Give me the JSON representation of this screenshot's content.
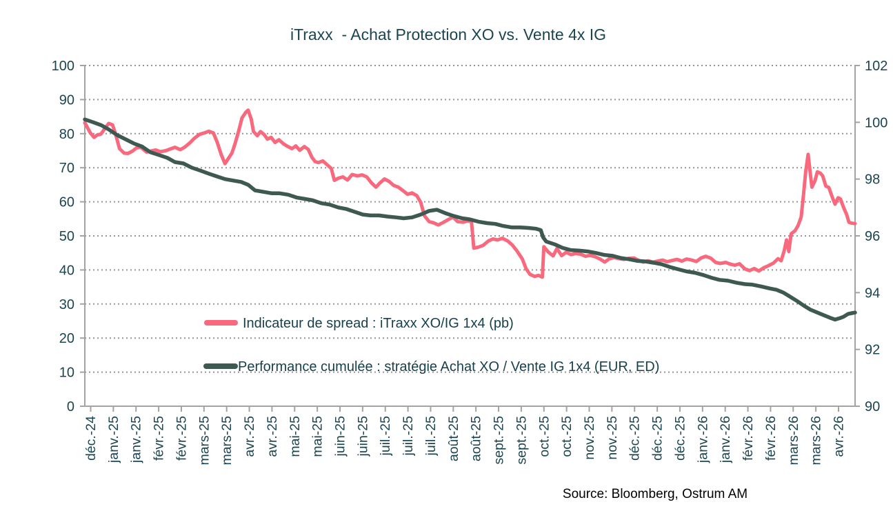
{
  "title": "iTraxx  - Achat Protection XO vs. Vente 4x IG",
  "source": "Source: Bloomberg, Ostrum AM",
  "colors": {
    "spread_line": "#f8697e",
    "performance_line": "#3e5952",
    "text": "#1a4550",
    "axis": "#a3a3a3",
    "grid": "#949494"
  },
  "legend": [
    {
      "label": "Indicateur de spread : iTraxx XO/IG 1x4 (pb)",
      "color": "#f8697e"
    },
    {
      "label": "Performance cumulée : stratégie Achat XO / Vente IG 1x4 (EUR, ED)",
      "color": "#3e5952"
    }
  ],
  "chart_data": {
    "type": "line",
    "title": "iTraxx - Achat Protection XO vs. Vente 4x IG",
    "grid": "horizontal dotted",
    "legend_position": "inside-left, mid-lower plot",
    "x_axis": {
      "note": "biweekly ticks, déc. 2024 → avr. 2026; series x stored as fraction 0-1 of time axis",
      "tick_labels": [
        "déc.-24",
        "janv.-25",
        "janv.-25",
        "févr.-25",
        "févr.-25",
        "mars-25",
        "mars-25",
        "avr.-25",
        "avr.-25",
        "mai-25",
        "mai-25",
        "juin-25",
        "juin-25",
        "juil.-25",
        "juil.-25",
        "juil.-25",
        "août-25",
        "août-25",
        "sept.-25",
        "sept.-25",
        "oct.-25",
        "oct.-25",
        "nov.-25",
        "nov.-25",
        "déc.-25",
        "déc.-25",
        "déc.-25",
        "janv.-26",
        "janv.-26",
        "févr.-26",
        "févr.-26",
        "mars-26",
        "mars-26",
        "avr.-26"
      ]
    },
    "left_y_axis": {
      "min": 0,
      "max": 100,
      "ticks": [
        0,
        10,
        20,
        30,
        40,
        50,
        60,
        70,
        80,
        90,
        100
      ],
      "series": "Indicateur de spread (pb)"
    },
    "right_y_axis": {
      "min": 90,
      "max": 102,
      "ticks": [
        90,
        92,
        94,
        96,
        98,
        100,
        102
      ],
      "series": "Performance cumulée (EUR, ED)"
    },
    "series": [
      {
        "name": "Indicateur de spread : iTraxx XO/IG 1x4 (pb)",
        "axis": "left",
        "color": "#f8697e",
        "points": [
          [
            0.0,
            83.2
          ],
          [
            0.007,
            80.3
          ],
          [
            0.012,
            78.9
          ],
          [
            0.016,
            79.6
          ],
          [
            0.021,
            79.9
          ],
          [
            0.026,
            81.5
          ],
          [
            0.031,
            83.0
          ],
          [
            0.036,
            82.6
          ],
          [
            0.04,
            79.8
          ],
          [
            0.045,
            75.6
          ],
          [
            0.051,
            74.3
          ],
          [
            0.056,
            74.2
          ],
          [
            0.062,
            74.9
          ],
          [
            0.067,
            75.8
          ],
          [
            0.073,
            76.0
          ],
          [
            0.08,
            74.6
          ],
          [
            0.086,
            74.9
          ],
          [
            0.092,
            75.2
          ],
          [
            0.098,
            74.7
          ],
          [
            0.105,
            75.0
          ],
          [
            0.111,
            75.5
          ],
          [
            0.117,
            76.0
          ],
          [
            0.124,
            75.3
          ],
          [
            0.13,
            76.1
          ],
          [
            0.136,
            77.2
          ],
          [
            0.142,
            78.6
          ],
          [
            0.149,
            79.8
          ],
          [
            0.155,
            80.2
          ],
          [
            0.161,
            80.7
          ],
          [
            0.167,
            80.2
          ],
          [
            0.172,
            77.4
          ],
          [
            0.177,
            73.9
          ],
          [
            0.182,
            71.2
          ],
          [
            0.186,
            72.6
          ],
          [
            0.191,
            74.3
          ],
          [
            0.195,
            77.0
          ],
          [
            0.2,
            81.0
          ],
          [
            0.204,
            84.6
          ],
          [
            0.209,
            86.3
          ],
          [
            0.212,
            86.9
          ],
          [
            0.216,
            84.3
          ],
          [
            0.219,
            80.6
          ],
          [
            0.224,
            79.4
          ],
          [
            0.228,
            80.6
          ],
          [
            0.233,
            79.7
          ],
          [
            0.237,
            78.4
          ],
          [
            0.242,
            78.9
          ],
          [
            0.247,
            77.4
          ],
          [
            0.252,
            78.2
          ],
          [
            0.258,
            77.0
          ],
          [
            0.263,
            76.3
          ],
          [
            0.269,
            75.6
          ],
          [
            0.274,
            76.4
          ],
          [
            0.279,
            75.1
          ],
          [
            0.285,
            76.2
          ],
          [
            0.29,
            75.4
          ],
          [
            0.295,
            73.0
          ],
          [
            0.299,
            71.8
          ],
          [
            0.303,
            71.5
          ],
          [
            0.309,
            72.0
          ],
          [
            0.314,
            71.0
          ],
          [
            0.32,
            69.8
          ],
          [
            0.324,
            66.3
          ],
          [
            0.329,
            66.9
          ],
          [
            0.335,
            67.3
          ],
          [
            0.341,
            66.4
          ],
          [
            0.347,
            68.0
          ],
          [
            0.354,
            67.6
          ],
          [
            0.36,
            67.9
          ],
          [
            0.366,
            67.3
          ],
          [
            0.372,
            65.6
          ],
          [
            0.378,
            64.3
          ],
          [
            0.383,
            65.5
          ],
          [
            0.389,
            66.7
          ],
          [
            0.395,
            66.0
          ],
          [
            0.401,
            64.8
          ],
          [
            0.407,
            64.3
          ],
          [
            0.413,
            63.3
          ],
          [
            0.419,
            62.2
          ],
          [
            0.425,
            62.6
          ],
          [
            0.431,
            61.8
          ],
          [
            0.436,
            59.9
          ],
          [
            0.441,
            55.9
          ],
          [
            0.447,
            54.2
          ],
          [
            0.453,
            53.8
          ],
          [
            0.459,
            53.2
          ],
          [
            0.466,
            54.0
          ],
          [
            0.472,
            54.8
          ],
          [
            0.478,
            55.5
          ],
          [
            0.484,
            54.2
          ],
          [
            0.491,
            54.0
          ],
          [
            0.497,
            54.4
          ],
          [
            0.502,
            54.2
          ],
          [
            0.505,
            46.4
          ],
          [
            0.511,
            46.7
          ],
          [
            0.517,
            47.2
          ],
          [
            0.524,
            48.5
          ],
          [
            0.53,
            49.1
          ],
          [
            0.536,
            48.8
          ],
          [
            0.542,
            49.3
          ],
          [
            0.549,
            48.5
          ],
          [
            0.555,
            47.3
          ],
          [
            0.561,
            45.6
          ],
          [
            0.568,
            43.2
          ],
          [
            0.573,
            40.3
          ],
          [
            0.578,
            38.7
          ],
          [
            0.584,
            38.1
          ],
          [
            0.589,
            38.4
          ],
          [
            0.594,
            37.9
          ],
          [
            0.596,
            46.8
          ],
          [
            0.602,
            45.2
          ],
          [
            0.608,
            44.1
          ],
          [
            0.613,
            46.3
          ],
          [
            0.619,
            44.2
          ],
          [
            0.625,
            45.2
          ],
          [
            0.631,
            44.5
          ],
          [
            0.637,
            44.8
          ],
          [
            0.644,
            44.6
          ],
          [
            0.65,
            44.0
          ],
          [
            0.656,
            44.3
          ],
          [
            0.662,
            43.9
          ],
          [
            0.669,
            43.2
          ],
          [
            0.675,
            42.3
          ],
          [
            0.681,
            43.3
          ],
          [
            0.687,
            43.6
          ],
          [
            0.694,
            43.3
          ],
          [
            0.7,
            43.1
          ],
          [
            0.706,
            43.4
          ],
          [
            0.713,
            43.5
          ],
          [
            0.719,
            42.8
          ],
          [
            0.725,
            42.3
          ],
          [
            0.731,
            42.7
          ],
          [
            0.738,
            42.3
          ],
          [
            0.744,
            42.6
          ],
          [
            0.75,
            42.9
          ],
          [
            0.756,
            42.4
          ],
          [
            0.763,
            42.8
          ],
          [
            0.769,
            43.1
          ],
          [
            0.775,
            42.6
          ],
          [
            0.781,
            43.2
          ],
          [
            0.788,
            42.9
          ],
          [
            0.794,
            42.5
          ],
          [
            0.8,
            43.5
          ],
          [
            0.806,
            44.0
          ],
          [
            0.813,
            43.4
          ],
          [
            0.819,
            42.2
          ],
          [
            0.825,
            41.9
          ],
          [
            0.832,
            42.2
          ],
          [
            0.838,
            41.7
          ],
          [
            0.844,
            41.4
          ],
          [
            0.85,
            41.8
          ],
          [
            0.857,
            40.3
          ],
          [
            0.863,
            39.8
          ],
          [
            0.869,
            40.4
          ],
          [
            0.875,
            39.7
          ],
          [
            0.882,
            40.7
          ],
          [
            0.888,
            41.3
          ],
          [
            0.894,
            42.0
          ],
          [
            0.9,
            43.3
          ],
          [
            0.904,
            42.7
          ],
          [
            0.908,
            45.6
          ],
          [
            0.911,
            48.8
          ],
          [
            0.914,
            45.4
          ],
          [
            0.917,
            50.6
          ],
          [
            0.922,
            51.5
          ],
          [
            0.926,
            53.0
          ],
          [
            0.93,
            55.5
          ],
          [
            0.933,
            62.0
          ],
          [
            0.936,
            69.0
          ],
          [
            0.939,
            73.9
          ],
          [
            0.941,
            70.0
          ],
          [
            0.944,
            64.3
          ],
          [
            0.948,
            66.2
          ],
          [
            0.951,
            68.8
          ],
          [
            0.955,
            68.4
          ],
          [
            0.958,
            67.6
          ],
          [
            0.962,
            64.6
          ],
          [
            0.966,
            64.2
          ],
          [
            0.971,
            61.0
          ],
          [
            0.974,
            59.3
          ],
          [
            0.978,
            61.2
          ],
          [
            0.981,
            60.8
          ],
          [
            0.985,
            58.4
          ],
          [
            0.989,
            56.3
          ],
          [
            0.992,
            54.0
          ],
          [
            0.996,
            53.7
          ],
          [
            1.0,
            53.6
          ]
        ]
      },
      {
        "name": "Performance cumulée : stratégie Achat XO / Vente IG 1x4 (EUR, ED)",
        "axis": "right",
        "color": "#3e5952",
        "points": [
          [
            0.0,
            100.1
          ],
          [
            0.011,
            100.0
          ],
          [
            0.021,
            99.9
          ],
          [
            0.031,
            99.75
          ],
          [
            0.042,
            99.55
          ],
          [
            0.053,
            99.4
          ],
          [
            0.064,
            99.25
          ],
          [
            0.074,
            99.15
          ],
          [
            0.085,
            98.95
          ],
          [
            0.096,
            98.85
          ],
          [
            0.107,
            98.75
          ],
          [
            0.117,
            98.6
          ],
          [
            0.128,
            98.55
          ],
          [
            0.139,
            98.4
          ],
          [
            0.15,
            98.3
          ],
          [
            0.16,
            98.2
          ],
          [
            0.171,
            98.1
          ],
          [
            0.182,
            98.0
          ],
          [
            0.192,
            97.95
          ],
          [
            0.203,
            97.9
          ],
          [
            0.212,
            97.8
          ],
          [
            0.221,
            97.6
          ],
          [
            0.232,
            97.55
          ],
          [
            0.243,
            97.5
          ],
          [
            0.253,
            97.5
          ],
          [
            0.264,
            97.45
          ],
          [
            0.275,
            97.35
          ],
          [
            0.286,
            97.3
          ],
          [
            0.296,
            97.25
          ],
          [
            0.307,
            97.15
          ],
          [
            0.318,
            97.1
          ],
          [
            0.329,
            97.0
          ],
          [
            0.339,
            96.95
          ],
          [
            0.35,
            96.85
          ],
          [
            0.361,
            96.75
          ],
          [
            0.371,
            96.72
          ],
          [
            0.382,
            96.72
          ],
          [
            0.393,
            96.68
          ],
          [
            0.404,
            96.65
          ],
          [
            0.414,
            96.62
          ],
          [
            0.425,
            96.65
          ],
          [
            0.436,
            96.75
          ],
          [
            0.447,
            96.88
          ],
          [
            0.457,
            96.92
          ],
          [
            0.468,
            96.8
          ],
          [
            0.479,
            96.7
          ],
          [
            0.49,
            96.62
          ],
          [
            0.5,
            96.58
          ],
          [
            0.511,
            96.5
          ],
          [
            0.522,
            96.45
          ],
          [
            0.533,
            96.42
          ],
          [
            0.543,
            96.35
          ],
          [
            0.554,
            96.3
          ],
          [
            0.565,
            96.3
          ],
          [
            0.576,
            96.28
          ],
          [
            0.586,
            96.25
          ],
          [
            0.592,
            96.2
          ],
          [
            0.595,
            95.95
          ],
          [
            0.599,
            95.8
          ],
          [
            0.61,
            95.7
          ],
          [
            0.62,
            95.58
          ],
          [
            0.631,
            95.5
          ],
          [
            0.642,
            95.48
          ],
          [
            0.653,
            95.45
          ],
          [
            0.663,
            95.4
          ],
          [
            0.674,
            95.33
          ],
          [
            0.685,
            95.3
          ],
          [
            0.696,
            95.22
          ],
          [
            0.706,
            95.18
          ],
          [
            0.717,
            95.12
          ],
          [
            0.728,
            95.1
          ],
          [
            0.739,
            95.05
          ],
          [
            0.749,
            95.0
          ],
          [
            0.76,
            94.9
          ],
          [
            0.771,
            94.82
          ],
          [
            0.781,
            94.75
          ],
          [
            0.792,
            94.7
          ],
          [
            0.803,
            94.62
          ],
          [
            0.814,
            94.52
          ],
          [
            0.824,
            94.45
          ],
          [
            0.835,
            94.42
          ],
          [
            0.846,
            94.35
          ],
          [
            0.857,
            94.3
          ],
          [
            0.867,
            94.28
          ],
          [
            0.878,
            94.22
          ],
          [
            0.889,
            94.15
          ],
          [
            0.898,
            94.1
          ],
          [
            0.907,
            94.0
          ],
          [
            0.916,
            93.85
          ],
          [
            0.925,
            93.7
          ],
          [
            0.933,
            93.55
          ],
          [
            0.942,
            93.4
          ],
          [
            0.951,
            93.3
          ],
          [
            0.96,
            93.2
          ],
          [
            0.969,
            93.1
          ],
          [
            0.974,
            93.05
          ],
          [
            0.98,
            93.1
          ],
          [
            0.985,
            93.15
          ],
          [
            0.991,
            93.25
          ],
          [
            0.996,
            93.28
          ],
          [
            1.0,
            93.3
          ]
        ]
      }
    ]
  }
}
